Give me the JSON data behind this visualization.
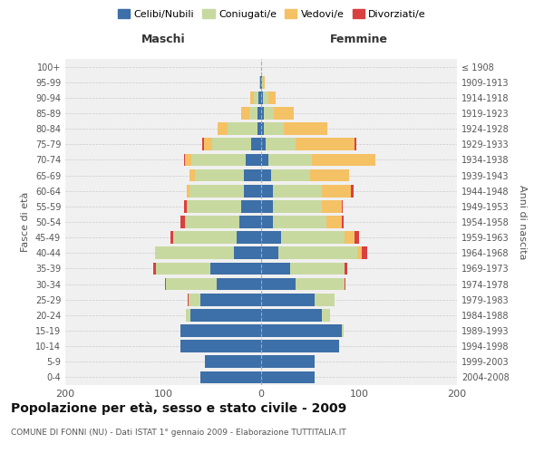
{
  "age_groups": [
    "0-4",
    "5-9",
    "10-14",
    "15-19",
    "20-24",
    "25-29",
    "30-34",
    "35-39",
    "40-44",
    "45-49",
    "50-54",
    "55-59",
    "60-64",
    "65-69",
    "70-74",
    "75-79",
    "80-84",
    "85-89",
    "90-94",
    "95-99",
    "100+"
  ],
  "birth_years": [
    "2004-2008",
    "1999-2003",
    "1994-1998",
    "1989-1993",
    "1984-1988",
    "1979-1983",
    "1974-1978",
    "1969-1973",
    "1964-1968",
    "1959-1963",
    "1954-1958",
    "1949-1953",
    "1944-1948",
    "1939-1943",
    "1934-1938",
    "1929-1933",
    "1924-1928",
    "1919-1923",
    "1914-1918",
    "1909-1913",
    "≤ 1908"
  ],
  "males": {
    "celibi": [
      62,
      57,
      82,
      82,
      72,
      62,
      45,
      52,
      28,
      25,
      22,
      20,
      18,
      18,
      16,
      10,
      4,
      4,
      3,
      1,
      0
    ],
    "coniugati": [
      0,
      0,
      0,
      0,
      5,
      12,
      52,
      55,
      80,
      65,
      55,
      55,
      55,
      50,
      55,
      40,
      30,
      8,
      4,
      0,
      0
    ],
    "vedovi": [
      0,
      0,
      0,
      0,
      0,
      0,
      0,
      0,
      0,
      0,
      1,
      1,
      3,
      5,
      7,
      8,
      10,
      8,
      4,
      1,
      0
    ],
    "divorziati": [
      0,
      0,
      0,
      0,
      0,
      1,
      1,
      3,
      0,
      3,
      4,
      3,
      0,
      0,
      1,
      2,
      0,
      0,
      0,
      0,
      0
    ]
  },
  "females": {
    "nubili": [
      55,
      55,
      80,
      82,
      62,
      55,
      35,
      30,
      18,
      20,
      12,
      12,
      12,
      10,
      7,
      5,
      3,
      3,
      2,
      1,
      0
    ],
    "coniugate": [
      0,
      0,
      0,
      2,
      8,
      20,
      50,
      55,
      80,
      65,
      55,
      50,
      50,
      40,
      45,
      30,
      20,
      10,
      5,
      1,
      0
    ],
    "vedove": [
      0,
      0,
      0,
      0,
      0,
      0,
      0,
      0,
      5,
      10,
      15,
      20,
      30,
      40,
      65,
      60,
      45,
      20,
      8,
      2,
      0
    ],
    "divorziate": [
      0,
      0,
      0,
      0,
      0,
      0,
      1,
      3,
      5,
      5,
      2,
      1,
      2,
      0,
      0,
      2,
      0,
      0,
      0,
      0,
      0
    ]
  },
  "colors": {
    "celibi": "#3d6fa8",
    "coniugati": "#c8d9a0",
    "vedovi": "#f5c165",
    "divorziati": "#d94040"
  },
  "title": "Popolazione per età, sesso e stato civile - 2009",
  "subtitle": "COMUNE DI FONNI (NU) - Dati ISTAT 1° gennaio 2009 - Elaborazione TUTTITALIA.IT",
  "xlabel_left": "Maschi",
  "xlabel_right": "Femmine",
  "ylabel_left": "Fasce di età",
  "ylabel_right": "Anni di nascita",
  "xlim": 200,
  "background_color": "#ffffff",
  "plot_bg_color": "#f0f0f0",
  "grid_color": "#cccccc"
}
